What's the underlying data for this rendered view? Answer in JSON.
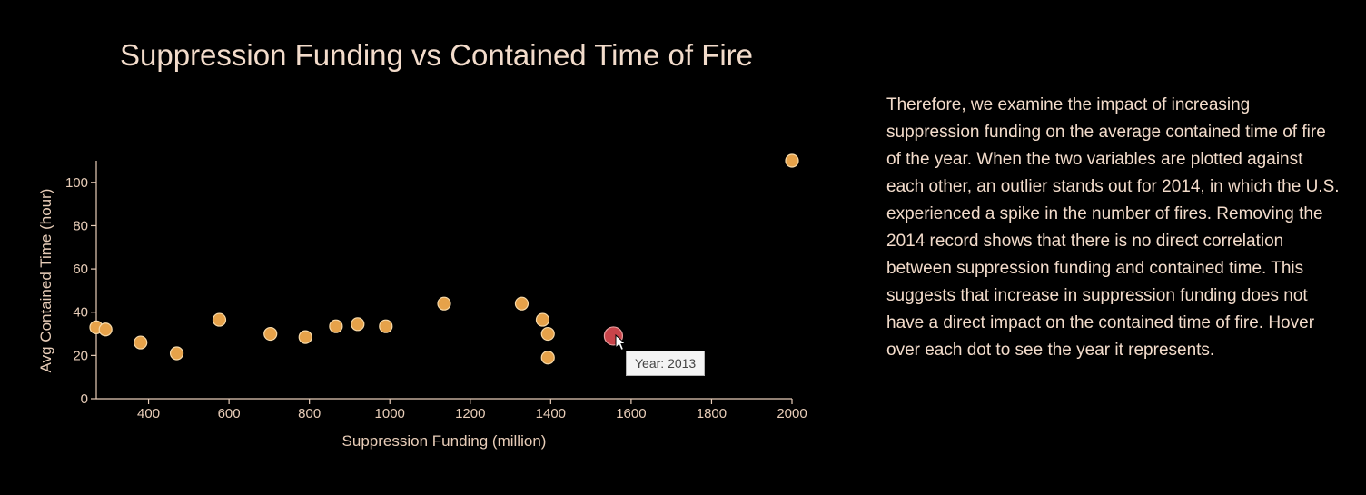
{
  "title": "Suppression Funding vs Contained Time of Fire",
  "description": "Therefore, we examine the impact of increasing suppression funding on the average contained time of fire of the year. When the two variables are plotted against each other, an outlier stands out for 2014, in which the U.S. experienced a spike in the number of fires. Removing the 2014 record shows that there is no direct correlation between suppression funding and contained time. This suggests that increase in suppression funding does not have a direct impact on the contained time of fire. Hover over each dot to see the year it represents.",
  "tooltip": "Year: 2013",
  "colors": {
    "background": "#000000",
    "text": "#f3dccb",
    "dot": "#e6a24a",
    "dot_stroke": "#f7d9a8",
    "dot_highlight": "#c8444a"
  },
  "chart_data": {
    "type": "scatter",
    "title": "Suppression Funding vs Contained Time of Fire",
    "xlabel": "Suppression Funding (million)",
    "ylabel": "Avg Contained Time (hour)",
    "xlim": [
      270,
      2000
    ],
    "ylim": [
      0,
      110
    ],
    "xticks": [
      400,
      600,
      800,
      1000,
      1200,
      1400,
      1600,
      1800,
      2000
    ],
    "yticks": [
      0,
      20,
      40,
      60,
      80,
      100
    ],
    "grid": false,
    "legend": "none",
    "points": [
      {
        "x": 270,
        "y": 33,
        "highlight": false
      },
      {
        "x": 293,
        "y": 32,
        "highlight": false
      },
      {
        "x": 380,
        "y": 26,
        "highlight": false
      },
      {
        "x": 470,
        "y": 21,
        "highlight": false
      },
      {
        "x": 576,
        "y": 36.5,
        "highlight": false
      },
      {
        "x": 703,
        "y": 30,
        "highlight": false
      },
      {
        "x": 790,
        "y": 28.5,
        "highlight": false
      },
      {
        "x": 866,
        "y": 33.5,
        "highlight": false
      },
      {
        "x": 920,
        "y": 34.5,
        "highlight": false
      },
      {
        "x": 990,
        "y": 33.5,
        "highlight": false
      },
      {
        "x": 1135,
        "y": 44,
        "highlight": false
      },
      {
        "x": 1328,
        "y": 44,
        "highlight": false
      },
      {
        "x": 1380,
        "y": 36.5,
        "highlight": false
      },
      {
        "x": 1393,
        "y": 30,
        "highlight": false
      },
      {
        "x": 1393,
        "y": 19,
        "highlight": false
      },
      {
        "x": 1556,
        "y": 29,
        "highlight": true,
        "year": 2013
      },
      {
        "x": 2000,
        "y": 110,
        "highlight": false
      }
    ]
  }
}
